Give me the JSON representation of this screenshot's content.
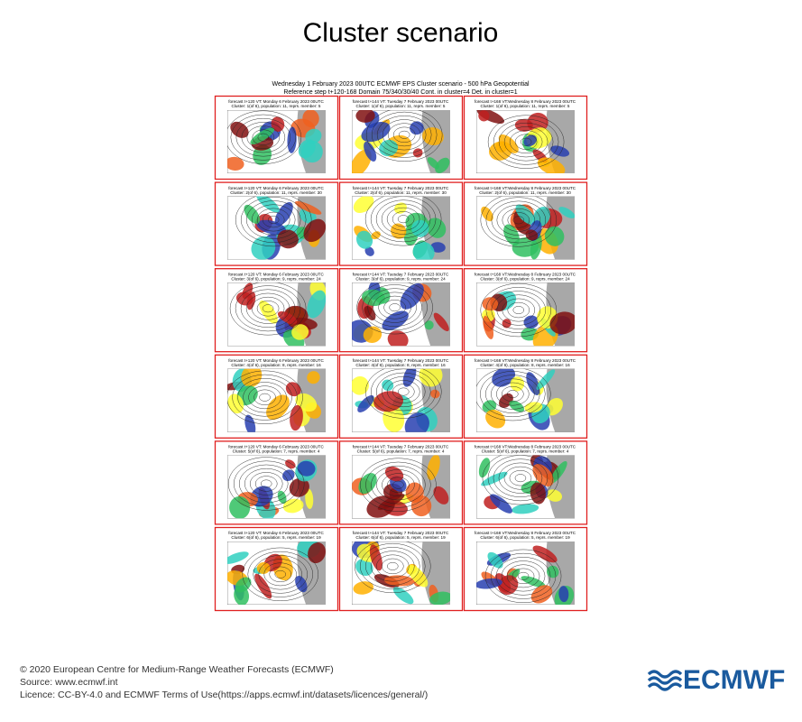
{
  "title": "Cluster scenario",
  "header": {
    "line1": "Wednesday 1 February 2023 00UTC ECMWF EPS Cluster scenario - 500 hPa Geopotential",
    "line2": "Reference step t+120-168 Domain 75/340/30/40 Cont. in cluster=4 Det. in cluster=1"
  },
  "panels": [
    [
      {
        "line1": "forecast t+120 VT: Monday 6 February 2023 00UTC",
        "line2": "Cluster: 1(of 6), population: 11, reprs. member: 5"
      },
      {
        "line1": "forecast t+144 VT: Tuesday 7 February 2023 00UTC",
        "line2": "Cluster: 1(of 6), population: 11, reprs. member: 5"
      },
      {
        "line1": "forecast t+168 VT:Wednesday 8 February 2023 00UTC",
        "line2": "Cluster: 1(of 6), population: 11, reprs. member: 5"
      }
    ],
    [
      {
        "line1": "forecast t+120 VT: Monday 6 February 2023 00UTC",
        "line2": "Cluster: 2(of 6), population: 11, reprs. member: 30"
      },
      {
        "line1": "forecast t+144 VT: Tuesday 7 February 2023 00UTC",
        "line2": "Cluster: 2(of 6), population: 11, reprs. member: 30"
      },
      {
        "line1": "forecast t+168 VT:Wednesday 8 February 2023 00UTC",
        "line2": "Cluster: 2(of 6), population: 11, reprs. member: 30"
      }
    ],
    [
      {
        "line1": "forecast t+120 VT: Monday 6 February 2023 00UTC",
        "line2": "Cluster: 3(of 6), population: 9, reprs. member: 24"
      },
      {
        "line1": "forecast t+144 VT: Tuesday 7 February 2023 00UTC",
        "line2": "Cluster: 3(of 6), population: 9, reprs. member: 24"
      },
      {
        "line1": "forecast t+168 VT:Wednesday 8 February 2023 00UTC",
        "line2": "Cluster: 3(of 6), population: 9, reprs. member: 24"
      }
    ],
    [
      {
        "line1": "forecast t+120 VT: Monday 6 February 2023 00UTC",
        "line2": "Cluster: 4(of 6), population: 8, reprs. member: 16"
      },
      {
        "line1": "forecast t+144 VT: Tuesday 7 February 2023 00UTC",
        "line2": "Cluster: 4(of 6), population: 8, reprs. member: 16"
      },
      {
        "line1": "forecast t+168 VT:Wednesday 8 February 2023 00UTC",
        "line2": "Cluster: 4(of 6), population: 8, reprs. member: 16"
      }
    ],
    [
      {
        "line1": "forecast t+120 VT: Monday 6 February 2023 00UTC",
        "line2": "Cluster: 5(of 6), population: 7, reprs. member: 4"
      },
      {
        "line1": "forecast t+144 VT: Tuesday 7 February 2023 00UTC",
        "line2": "Cluster: 5(of 6), population: 7, reprs. member: 4"
      },
      {
        "line1": "forecast t+168 VT:Wednesday 8 February 2023 00UTC",
        "line2": "Cluster: 5(of 6), population: 7, reprs. member: 4"
      }
    ],
    [
      {
        "line1": "forecast t+120 VT: Monday 6 February 2023 00UTC",
        "line2": "Cluster: 6(of 6), population: 5, reprs. member: 19"
      },
      {
        "line1": "forecast t+144 VT: Tuesday 7 February 2023 00UTC",
        "line2": "Cluster: 6(of 6), population: 5, reprs. member: 19"
      },
      {
        "line1": "forecast t+168 VT:Wednesday 8 February 2023 00UTC",
        "line2": "Cluster: 6(of 6), population: 5, reprs. member: 19"
      }
    ]
  ],
  "footer": {
    "copyright": "© 2020 European Centre for Medium-Range Weather Forecasts (ECMWF)",
    "source": "Source: www.ecmwf.int",
    "licence": "Licence: CC-BY-4.0 and ECMWF Terms of Use(https://apps.ecmwf.int/datasets/licences/general/)"
  },
  "logo": "ECMWF"
}
